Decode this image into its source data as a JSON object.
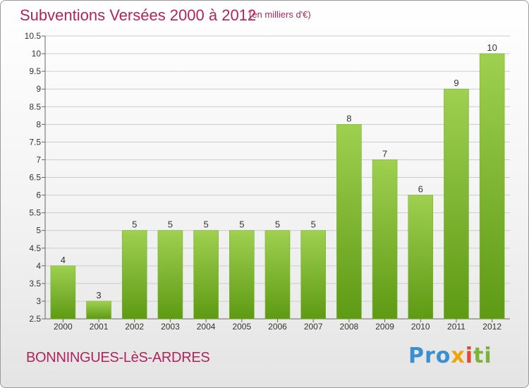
{
  "header": {
    "title": "Subventions Versées 2000 à 2012",
    "unit": "(en milliers d'€)"
  },
  "footer": {
    "commune": "BONNINGUES-LèS-ARDRES",
    "logo": {
      "p1": "Pro",
      "p2": "x",
      "p3": "i",
      "p4": "ti"
    }
  },
  "colors": {
    "bar_top": "#9fd050",
    "bar_bottom": "#5e9a14",
    "title": "#b0245e",
    "grid": "#cccccc"
  },
  "chart_data": {
    "type": "bar",
    "title": "Subventions Versées 2000 à 2012",
    "subtitle": "(en milliers d'€)",
    "categories": [
      "2000",
      "2001",
      "2002",
      "2003",
      "2004",
      "2005",
      "2006",
      "2007",
      "2008",
      "2009",
      "2010",
      "2011",
      "2012"
    ],
    "values": [
      4,
      3,
      5,
      5,
      5,
      5,
      5,
      5,
      8,
      7,
      6,
      9,
      10
    ],
    "data_labels": [
      "4",
      "3",
      "5",
      "5",
      "5",
      "5",
      "5",
      "5",
      "8",
      "7",
      "6",
      "9",
      "10"
    ],
    "ylim": [
      2.5,
      10.5
    ],
    "yticks": [
      2.5,
      3,
      3.5,
      4,
      4.5,
      5,
      5.5,
      6,
      6.5,
      7,
      7.5,
      8,
      8.5,
      9,
      9.5,
      10,
      10.5
    ],
    "ytick_labels": [
      "2.5",
      "3",
      "3.5",
      "4",
      "4.5",
      "5",
      "5.5",
      "6",
      "6.5",
      "7",
      "7.5",
      "8",
      "8.5",
      "9",
      "9.5",
      "10",
      "10.5"
    ],
    "grid": true,
    "legend": "none"
  }
}
